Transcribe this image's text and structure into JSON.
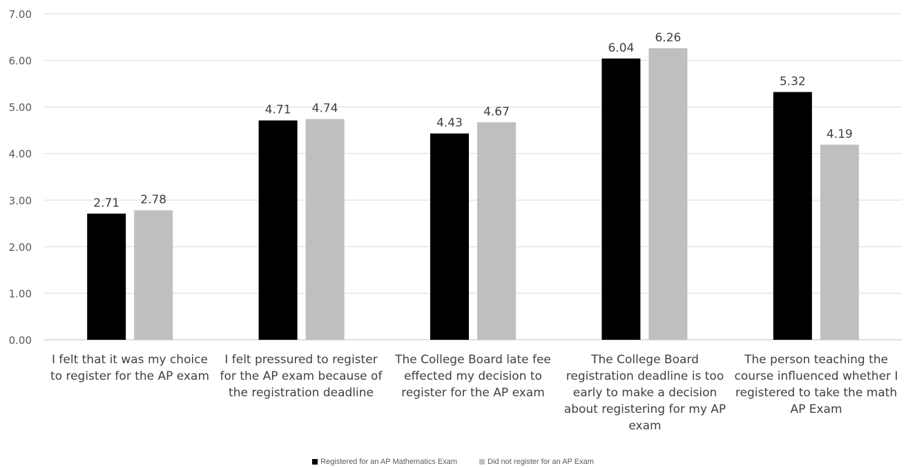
{
  "chart_data": {
    "type": "bar",
    "title": "",
    "xlabel": "",
    "ylabel": "",
    "ylim": [
      0,
      7
    ],
    "yticks": [
      "0.00",
      "1.00",
      "2.00",
      "3.00",
      "4.00",
      "5.00",
      "6.00",
      "7.00"
    ],
    "grid": true,
    "legend_position": "bottom",
    "categories": [
      "I felt that it was my choice to register for the AP exam",
      "I felt pressured to register for the AP exam because of the registration deadline",
      "The College Board late fee effected my decision to register for the AP exam",
      "The College Board registration deadline is too early to make a decision about registering for my AP exam",
      "The person teaching the course influenced whether I registered to take the math AP Exam"
    ],
    "series": [
      {
        "name": "Registered for an AP Mathematics Exam",
        "color": "#000000",
        "values": [
          2.71,
          4.71,
          4.43,
          6.04,
          5.32
        ],
        "labels": [
          "2.71",
          "4.71",
          "4.43",
          "6.04",
          "5.32"
        ]
      },
      {
        "name": "Did not register for an AP Exam",
        "color": "#bfbfbf",
        "values": [
          2.78,
          4.74,
          4.67,
          6.26,
          4.19
        ],
        "labels": [
          "2.78",
          "4.74",
          "4.67",
          "6.26",
          "4.19"
        ]
      }
    ]
  }
}
